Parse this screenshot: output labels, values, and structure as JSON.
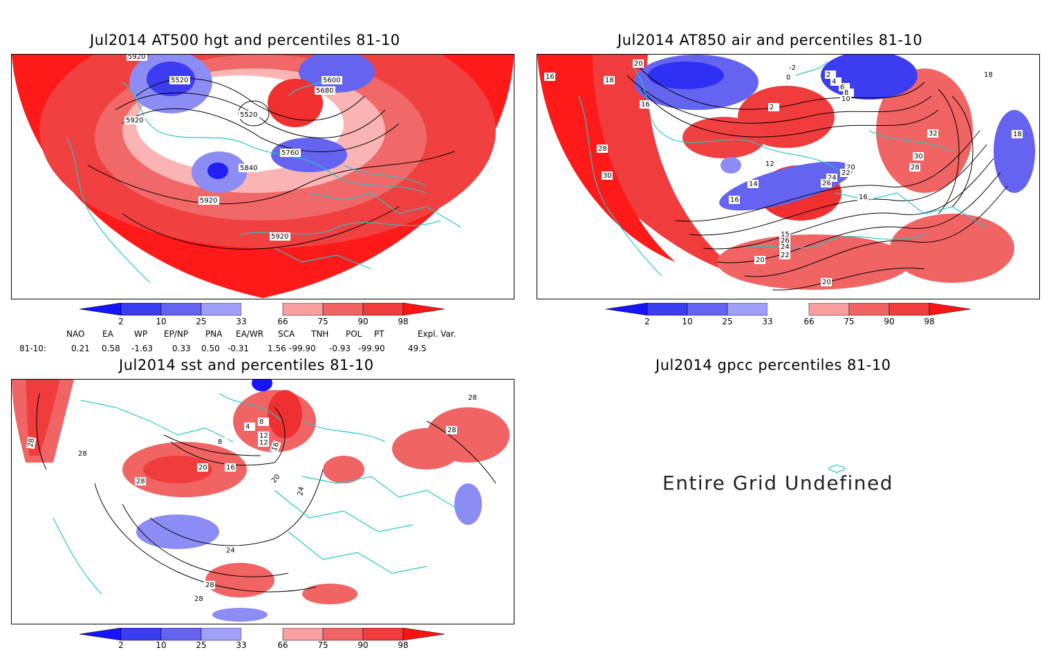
{
  "panels": {
    "hgt": {
      "title": "Jul2014 AT500 hgt and percentiles 81-10",
      "contour_labels": [
        "5920",
        "5520",
        "5600",
        "5680",
        "5520",
        "5920",
        "5760",
        "5840",
        "5920",
        "5920"
      ]
    },
    "air": {
      "title": "Jul2014 AT850 air and percentiles 81-10",
      "contour_labels": [
        "20",
        "16",
        "-2",
        "0",
        "2",
        "4",
        "6",
        "8",
        "10",
        "2",
        "18",
        "32",
        "30",
        "28",
        "12",
        "14",
        "16",
        "20",
        "22",
        "24",
        "26",
        "28",
        "30",
        "20",
        "18",
        "16",
        "15",
        "26",
        "24",
        "22",
        "20",
        "18",
        "16"
      ]
    },
    "sst": {
      "title": "Jul2014 sst and percentiles 81-10",
      "contour_labels": [
        "28",
        "28",
        "28",
        "20",
        "16",
        "12",
        "8",
        "4",
        "20",
        "24",
        "28",
        "28",
        "28",
        "28",
        "24",
        "8",
        "16",
        "12"
      ]
    },
    "gpcc": {
      "title": "Jul2014 gpcc percentiles 81-10",
      "message": "Entire Grid Undefined"
    }
  },
  "colorbar": {
    "labels": [
      "2",
      "10",
      "25",
      "33",
      "66",
      "75",
      "90",
      "98"
    ],
    "colors": [
      "#1414ff",
      "#3c3cf0",
      "#6464f0",
      "#a0a0fa",
      "#ffffff",
      "#faa0a0",
      "#f06464",
      "#f03c3c",
      "#ff1414"
    ]
  },
  "indices": {
    "headers": [
      "NAO",
      "EA",
      "WP",
      "EP/NP",
      "PNA",
      "EA/WR",
      "SCA",
      "TNH",
      "POL",
      "PT",
      "Expl. Var."
    ],
    "row_label": "81-10:",
    "values": [
      "0.21",
      "0.58",
      "-1.63",
      "0.33",
      "0.50",
      "-0.31",
      "1.56",
      "-99.90",
      "-0.93",
      "-99.90",
      "49.5"
    ]
  }
}
